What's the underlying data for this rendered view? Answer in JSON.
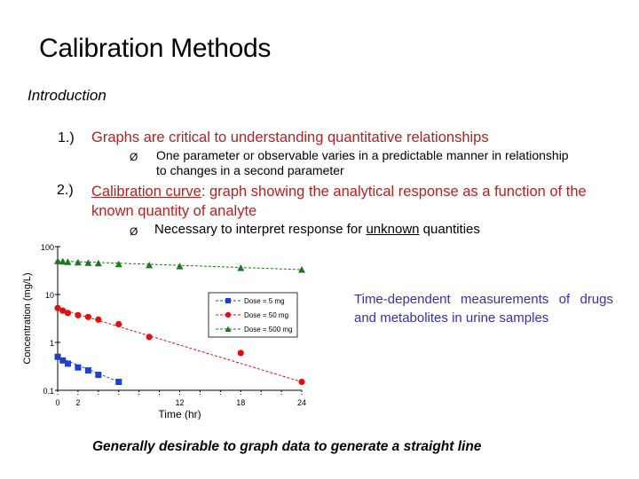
{
  "slide": {
    "title": "Calibration Methods",
    "subtitle": "Introduction",
    "points": [
      {
        "number": "1.)",
        "text": "Graphs are critical to understanding quantitative relationships",
        "sub": {
          "bullet": "Ø",
          "text": "One parameter or observable varies in a predictable manner in relationship to changes in a second parameter"
        }
      },
      {
        "number": "2.)",
        "term": "Calibration curve",
        "text": ": graph showing the analytical response as a function of the known quantity of analyte",
        "sub": {
          "bullet": "Ø",
          "text_before": "Necessary to interpret response for ",
          "text_underlined": "unknown",
          "text_after": " quantities"
        }
      }
    ],
    "side_note": "Time-dependent measurements of drugs and metabolites in urine samples",
    "footer": "Generally desirable to graph data to generate a straight line",
    "colors": {
      "accent_red": "#b22222",
      "side_note_blue": "#3333aa"
    }
  },
  "chart_data": {
    "type": "scatter",
    "xlabel": "Time (hr)",
    "ylabel": "Concentration (mg/L)",
    "x_ticks": [
      "0",
      "2",
      "12",
      "18",
      "24"
    ],
    "y_ticks": [
      "100",
      "10",
      "1",
      "0.1"
    ],
    "y_scale": "log",
    "ylim": [
      0.1,
      100
    ],
    "xlim": [
      0,
      24
    ],
    "legend_position": "right-center",
    "series": [
      {
        "name": "Dose = 5 mg",
        "marker": "square",
        "color": "#1f3fd0",
        "x": [
          0,
          0.5,
          1,
          2,
          3,
          4,
          6
        ],
        "y": [
          0.5,
          0.42,
          0.36,
          0.3,
          0.26,
          0.21,
          0.15
        ]
      },
      {
        "name": "Dose = 50 mg",
        "marker": "circle",
        "color": "#e01010",
        "x": [
          0,
          0.5,
          1,
          2,
          3,
          4,
          6,
          9,
          18,
          24
        ],
        "y": [
          5.2,
          4.6,
          4.1,
          3.7,
          3.4,
          3.0,
          2.4,
          1.3,
          0.6,
          0.15
        ]
      },
      {
        "name": "Dose = 500 mg",
        "marker": "triangle",
        "color": "#1a7a1a",
        "x": [
          0,
          0.5,
          1,
          2,
          3,
          4,
          6,
          9,
          12,
          18,
          24
        ],
        "y": [
          50,
          49,
          48,
          47,
          46,
          45,
          43,
          41,
          39,
          36,
          33
        ]
      }
    ]
  }
}
